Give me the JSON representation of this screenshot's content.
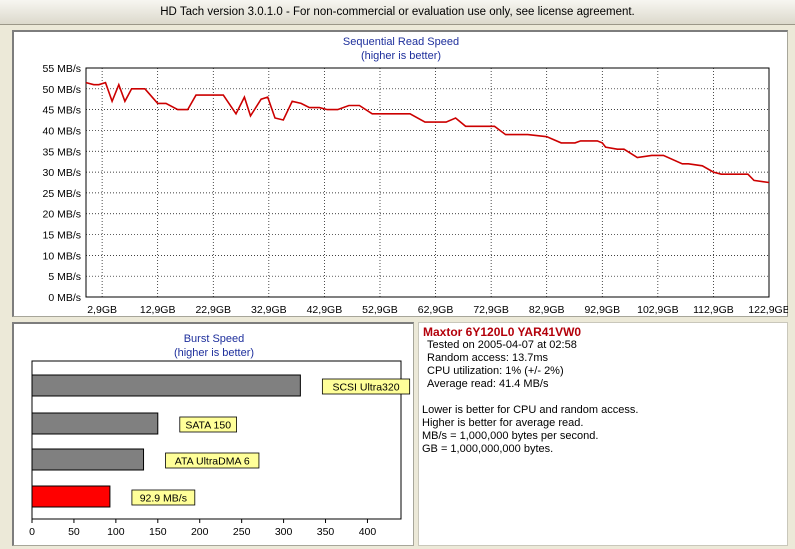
{
  "window": {
    "title": "HD Tach version 3.0.1.0  - For non-commercial or evaluation use only, see license agreement."
  },
  "info": {
    "drive_name": "Maxtor 6Y120L0 YAR41VW0",
    "tested_on": "Tested on 2005-04-07 at 02:58",
    "random_access": "Random access: 13.7ms",
    "cpu_utilization": "CPU utilization: 1% (+/- 2%)",
    "average_read": "Average read: 41.4 MB/s",
    "note1": "Lower is better for CPU and random access.",
    "note2": "Higher is better for average read.",
    "note3": "MB/s = 1,000,000 bytes per second.",
    "note4": "GB = 1,000,000,000 bytes."
  },
  "colors": {
    "read_line": "#cc0000",
    "bar_gray": "#808080",
    "bar_red": "#ff0000",
    "label_yellow": "#ffff99",
    "title_blue": "#1e2f9c",
    "drive_red": "#b3000a"
  },
  "chart_data": [
    {
      "type": "line",
      "title": "Sequential Read Speed",
      "subtitle": "(higher is better)",
      "y_tick_labels": [
        "0 MB/s",
        "5 MB/s",
        "10 MB/s",
        "15 MB/s",
        "20 MB/s",
        "25 MB/s",
        "30 MB/s",
        "35 MB/s",
        "40 MB/s",
        "45 MB/s",
        "50 MB/s",
        "55 MB/s"
      ],
      "x_tick_labels": [
        "2,9GB",
        "12,9GB",
        "22,9GB",
        "32,9GB",
        "42,9GB",
        "52,9GB",
        "62,9GB",
        "72,9GB",
        "82,9GB",
        "92,9GB",
        "102,9GB",
        "112,9GB",
        "122,9GB"
      ],
      "ylim": [
        0,
        55
      ],
      "xlim": [
        0,
        122.9
      ],
      "grid": true,
      "series": [
        {
          "x": [
            0,
            1.4,
            2.3,
            3.5,
            4.7,
            5.9,
            7.0,
            8.2,
            9.4,
            10.6,
            12.9,
            14.4,
            16.5,
            18.3,
            19.8,
            21.5,
            22.6,
            24.7,
            27.0,
            28.5,
            29.6,
            31.5,
            32.7,
            34.0,
            35.5,
            37.1,
            38.7,
            40.2,
            42.0,
            43.4,
            45.3,
            47.3,
            49.2,
            51.5,
            52.9,
            54.5,
            56.0,
            58.3,
            61.0,
            62.9,
            64.8,
            66.5,
            68.3,
            70.5,
            72.0,
            73.5,
            75.5,
            78.0,
            79.5,
            82.9,
            85.5,
            88.0,
            89.0,
            92.0,
            92.9,
            93.5,
            95.6,
            96.8,
            99.2,
            101.8,
            102.9,
            103.9,
            107.3,
            108.4,
            110.9,
            112.9,
            114.3,
            115.7,
            119.1,
            120.2,
            122.9
          ],
          "y": [
            51.5,
            51.0,
            51.0,
            51.5,
            47.0,
            51.0,
            47.0,
            50.0,
            50.0,
            50.0,
            46.5,
            46.5,
            45.0,
            45.0,
            48.5,
            48.5,
            48.5,
            48.5,
            44.0,
            48.0,
            43.5,
            47.5,
            48.0,
            43.0,
            42.5,
            47.0,
            46.5,
            45.5,
            45.5,
            45.0,
            45.0,
            46.0,
            46.0,
            44.0,
            44.0,
            44.0,
            44.0,
            44.0,
            42.0,
            42.0,
            42.0,
            43.0,
            41.0,
            41.0,
            41.0,
            41.0,
            39.0,
            39.0,
            39.0,
            38.5,
            37.0,
            37.0,
            37.5,
            37.5,
            37.0,
            36.0,
            35.5,
            35.5,
            33.5,
            34.0,
            34.0,
            34.0,
            32.0,
            32.0,
            31.5,
            30.0,
            29.5,
            29.5,
            29.5,
            28.0,
            27.5
          ]
        }
      ]
    },
    {
      "type": "bar",
      "orientation": "horizontal",
      "title": "Burst Speed",
      "subtitle": "(higher is better)",
      "x_tick_labels": [
        "0",
        "50",
        "100",
        "150",
        "200",
        "250",
        "300",
        "350",
        "400"
      ],
      "xlim": [
        0,
        440
      ],
      "grid": false,
      "categories": [
        "SCSI Ultra320",
        "SATA 150",
        "ATA UltraDMA 6",
        "92.9 MB/s"
      ],
      "values": [
        320,
        150,
        133,
        92.9
      ]
    }
  ]
}
